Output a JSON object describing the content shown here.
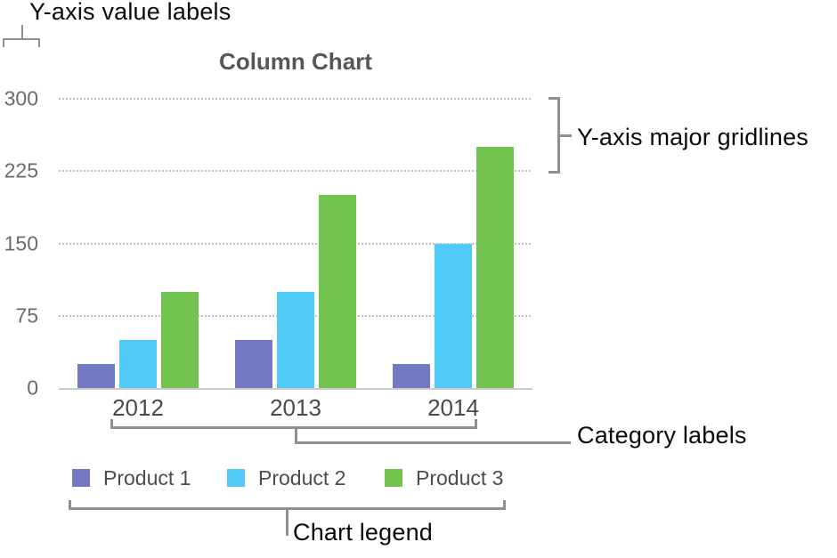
{
  "annotations": {
    "y_value_labels": "Y-axis value labels",
    "y_major_gridlines": "Y-axis major gridlines",
    "category_labels": "Category labels",
    "chart_legend": "Chart legend"
  },
  "chart_data": {
    "type": "bar",
    "title": "Column Chart",
    "categories": [
      "2012",
      "2013",
      "2014"
    ],
    "series": [
      {
        "name": "Product 1",
        "color": "#7378c3",
        "values": [
          25,
          50,
          25
        ]
      },
      {
        "name": "Product 2",
        "color": "#52caf7",
        "values": [
          50,
          100,
          150
        ]
      },
      {
        "name": "Product 3",
        "color": "#72c350",
        "values": [
          100,
          200,
          250
        ]
      }
    ],
    "y_ticks": [
      0,
      75,
      150,
      225,
      300
    ],
    "ylim": [
      0,
      300
    ],
    "grid": "horizontal-dotted",
    "legend_position": "bottom"
  }
}
